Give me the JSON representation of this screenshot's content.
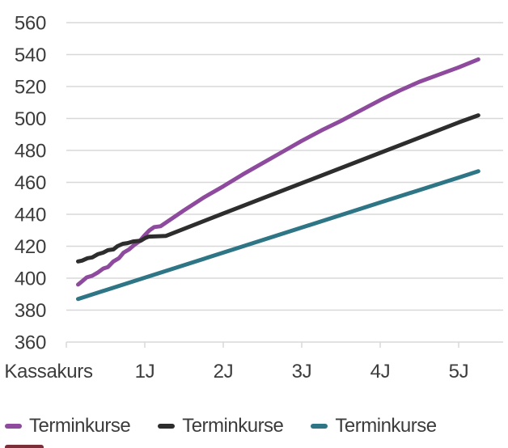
{
  "colors": {
    "grid": "#d8d8d8",
    "axis_text": "#3c3c3c",
    "background": "#ffffff",
    "cutoff_element": "#7a2e38"
  },
  "chart_data": {
    "type": "line",
    "title": "",
    "xlabel": "",
    "ylabel": "",
    "x_axis": {
      "labels": [
        "Kassakurs",
        "1J",
        "2J",
        "3J",
        "4J",
        "5J"
      ],
      "tick_years": [
        0,
        1,
        2,
        3,
        4,
        5
      ]
    },
    "y_axis": {
      "min": 360,
      "max": 560,
      "step": 20
    },
    "grid": true,
    "legend_position": "bottom",
    "series": [
      {
        "name": "Terminkurse",
        "color": "#8e4a9c",
        "points": [
          [
            0.15,
            396
          ],
          [
            0.2,
            398
          ],
          [
            0.26,
            400.5
          ],
          [
            0.33,
            401.5
          ],
          [
            0.4,
            403.5
          ],
          [
            0.47,
            406
          ],
          [
            0.53,
            407
          ],
          [
            0.6,
            410.5
          ],
          [
            0.67,
            412.5
          ],
          [
            0.73,
            416
          ],
          [
            0.8,
            418
          ],
          [
            0.87,
            421
          ],
          [
            0.93,
            423
          ],
          [
            1.0,
            427
          ],
          [
            1.06,
            430
          ],
          [
            1.12,
            432
          ],
          [
            1.2,
            432.5
          ],
          [
            1.35,
            437.5
          ],
          [
            1.5,
            442.5
          ],
          [
            1.75,
            450.5
          ],
          [
            2.0,
            457.5
          ],
          [
            2.25,
            465
          ],
          [
            2.5,
            472
          ],
          [
            2.75,
            479
          ],
          [
            3.0,
            486
          ],
          [
            3.25,
            492.5
          ],
          [
            3.5,
            498.5
          ],
          [
            3.75,
            505
          ],
          [
            4.0,
            511.5
          ],
          [
            4.25,
            517.5
          ],
          [
            4.5,
            523
          ],
          [
            4.75,
            527.5
          ],
          [
            5.0,
            532
          ],
          [
            5.25,
            537
          ]
        ]
      },
      {
        "name": "Terminkurse",
        "color": "#2d2d2d",
        "points": [
          [
            0.15,
            410.5
          ],
          [
            0.2,
            411
          ],
          [
            0.27,
            412.5
          ],
          [
            0.33,
            413
          ],
          [
            0.4,
            415
          ],
          [
            0.47,
            416
          ],
          [
            0.53,
            417.5
          ],
          [
            0.6,
            418
          ],
          [
            0.65,
            420
          ],
          [
            0.72,
            421.5
          ],
          [
            0.78,
            422
          ],
          [
            0.85,
            423
          ],
          [
            0.95,
            423.5
          ],
          [
            1.0,
            425
          ],
          [
            1.05,
            426
          ],
          [
            1.27,
            426.5
          ],
          [
            2.0,
            440.5
          ],
          [
            3.0,
            459.5
          ],
          [
            4.0,
            478.5
          ],
          [
            5.0,
            497.5
          ],
          [
            5.25,
            502
          ]
        ]
      },
      {
        "name": "Terminkurse",
        "color": "#2e7586",
        "points": [
          [
            0.15,
            387
          ],
          [
            1.0,
            400.3
          ],
          [
            2.0,
            416.0
          ],
          [
            3.0,
            431.7
          ],
          [
            4.0,
            447.4
          ],
          [
            5.0,
            463.0
          ],
          [
            5.25,
            467
          ]
        ]
      }
    ]
  }
}
